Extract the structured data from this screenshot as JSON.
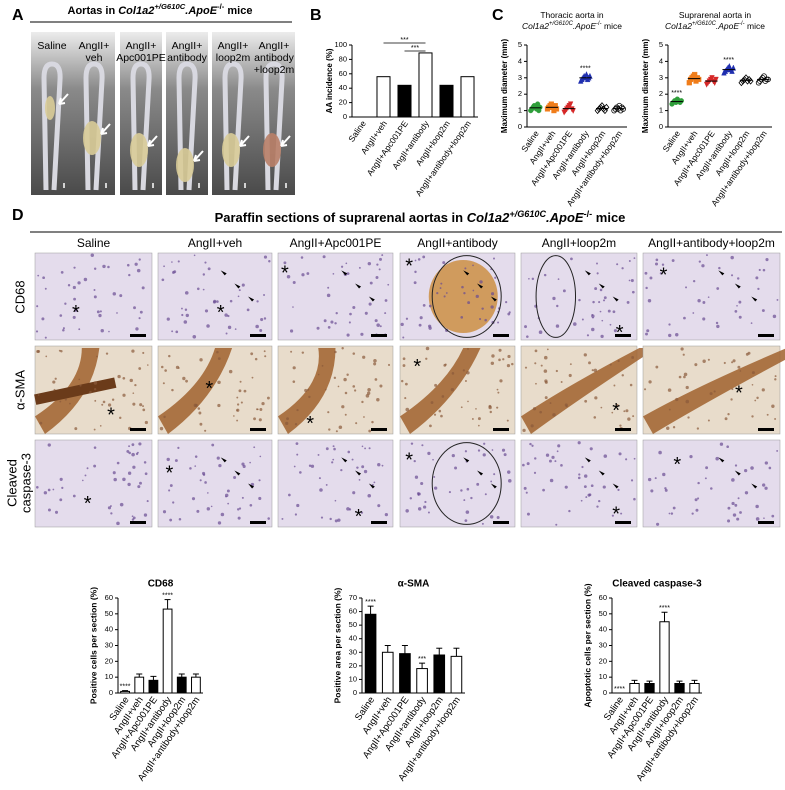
{
  "panel_a": {
    "label": "A",
    "title": [
      {
        "text": "Aortas in "
      },
      {
        "text": "Col1a2",
        "style": "italic"
      },
      {
        "text": "+/G610C",
        "style": "sup-italic"
      },
      {
        "text": ".ApoE",
        "style": "italic"
      },
      {
        "text": "-/-",
        "style": "sup"
      },
      {
        "text": " mice"
      }
    ],
    "groups": [
      [
        "Saline"
      ],
      [
        "AngII+",
        "veh"
      ],
      [
        "AngII+",
        "Apc001PE"
      ],
      [
        "AngII+",
        "antibody"
      ],
      [
        "AngII+",
        "loop2m"
      ],
      [
        "AngII+",
        "antibody",
        "+loop2m"
      ]
    ]
  },
  "panel_d": {
    "label": "D",
    "title": [
      {
        "text": "Paraffin sections of suprarenal aortas in "
      },
      {
        "text": "Col1a2",
        "style": "italic"
      },
      {
        "text": "+/G610C",
        "style": "sup-italic"
      },
      {
        "text": ".ApoE",
        "style": "italic"
      },
      {
        "text": "-/-",
        "style": "sup"
      },
      {
        "text": " mice"
      }
    ],
    "columns": [
      "Saline",
      "AngII+veh",
      "AngII+Apc001PE",
      "AngII+antibody",
      "AngII+loop2m",
      "AngII+antibody+loop2m"
    ],
    "rows": [
      [
        "CD68"
      ],
      [
        "α-SMA"
      ],
      [
        "Cleaved",
        "caspase-3"
      ]
    ],
    "asterisk": "*"
  },
  "chart_data": [
    {
      "panel": "B",
      "type": "bar",
      "ylabel": "AA incidence (%)",
      "categories": [
        "Saline",
        "AngII+veh",
        "AngII+Apc001PE",
        "AngII+antibody",
        "AngII+loop2m",
        "AngII+antibody+loop2m"
      ],
      "values": [
        0,
        56,
        44,
        89,
        44,
        56
      ],
      "colors": [
        "#ffffff",
        "#ffffff",
        "#000000",
        "#ffffff",
        "#000000",
        "#ffffff"
      ],
      "ylim": [
        0,
        100
      ],
      "yticks": [
        0,
        20,
        40,
        60,
        80,
        100
      ],
      "brackets": [
        {
          "from": "AngII+veh",
          "to": "AngII+antibody",
          "label": "***"
        },
        {
          "from": "AngII+Apc001PE",
          "to": "AngII+antibody",
          "label": "***"
        }
      ]
    },
    {
      "panel": "C",
      "type": "strip",
      "title": [
        [
          {
            "text": "Thoracic aorta in"
          }
        ],
        [
          {
            "text": "Col1a2",
            "style": "italic"
          },
          {
            "text": "+/G610C",
            "style": "sup-italic"
          },
          {
            "text": ".ApoE",
            "style": "italic"
          },
          {
            "text": "-/-",
            "style": "sup"
          },
          {
            "text": " mice"
          }
        ]
      ],
      "ylabel": "Maximum diameter (mm)",
      "categories": [
        "Saline",
        "AngII+veh",
        "AngII+Apc001PE",
        "AngII+antibody",
        "AngII+loop2m",
        "AngII+antibody+loop2m"
      ],
      "groups": [
        [
          1.0,
          1.1,
          1.2,
          1.3,
          1.2,
          1.1,
          1.4,
          1.0,
          1.2
        ],
        [
          1.1,
          1.2,
          1.3,
          1.4,
          1.2,
          1.0,
          1.3,
          1.1
        ],
        [
          0.9,
          1.0,
          1.1,
          1.2,
          1.3,
          1.4,
          1.1,
          1.0
        ],
        [
          2.8,
          2.9,
          3.0,
          3.1,
          3.0,
          3.2,
          2.9,
          3.0,
          3.1
        ],
        [
          1.0,
          1.1,
          1.2,
          1.3,
          1.1,
          1.0,
          1.2
        ],
        [
          1.0,
          1.1,
          1.2,
          1.1,
          1.3,
          1.0,
          1.2,
          1.1
        ]
      ],
      "means": [
        1.17,
        1.2,
        1.12,
        3.0,
        1.13,
        1.12
      ],
      "colors": [
        "#2e9e3a",
        "#f07d1a",
        "#d62828",
        "#1f2fb0",
        "#000000",
        "#000000"
      ],
      "markers": [
        "circle",
        "square",
        "triangle-down",
        "triangle",
        "diamond-open",
        "circle-open"
      ],
      "annotations": [
        null,
        null,
        null,
        "****",
        null,
        null
      ],
      "ylim": [
        0,
        5
      ],
      "yticks": [
        0,
        1,
        2,
        3,
        4,
        5
      ]
    },
    {
      "type": "strip",
      "title": [
        [
          {
            "text": "Suprarenal aorta in"
          }
        ],
        [
          {
            "text": "Col1a2",
            "style": "italic"
          },
          {
            "text": "+/G610C",
            "style": "sup-italic"
          },
          {
            "text": ".ApoE",
            "style": "italic"
          },
          {
            "text": "-/-",
            "style": "sup"
          },
          {
            "text": " mice"
          }
        ]
      ],
      "ylabel": "Maximum diameter (mm)",
      "categories": [
        "Saline",
        "AngII+veh",
        "AngII+Apc001PE",
        "AngII+antibody",
        "AngII+loop2m",
        "AngII+antibody+loop2m"
      ],
      "groups": [
        [
          1.4,
          1.5,
          1.6,
          1.5,
          1.7,
          1.6,
          1.5,
          1.6
        ],
        [
          2.7,
          2.9,
          3.0,
          3.1,
          3.2,
          2.8,
          3.0,
          2.9
        ],
        [
          2.6,
          2.7,
          2.8,
          2.9,
          3.0,
          2.8,
          2.7,
          2.9
        ],
        [
          3.3,
          3.4,
          3.5,
          3.6,
          3.7,
          3.5,
          3.4,
          3.6
        ],
        [
          2.7,
          2.8,
          2.9,
          3.0,
          2.8,
          2.9,
          2.8
        ],
        [
          2.7,
          2.8,
          2.9,
          3.0,
          3.1,
          2.8,
          2.9,
          2.9
        ]
      ],
      "means": [
        1.55,
        2.95,
        2.8,
        3.5,
        2.85,
        2.9
      ],
      "colors": [
        "#2e9e3a",
        "#f07d1a",
        "#d62828",
        "#1f2fb0",
        "#000000",
        "#000000"
      ],
      "markers": [
        "circle",
        "square",
        "triangle-down",
        "triangle",
        "diamond-open",
        "circle-open"
      ],
      "annotations": [
        "****",
        null,
        null,
        "****",
        null,
        null
      ],
      "ylim": [
        0,
        5
      ],
      "yticks": [
        0,
        1,
        2,
        3,
        4,
        5
      ]
    },
    {
      "type": "bar",
      "title": "CD68",
      "ylabel": "Positive cells per section (%)",
      "categories": [
        "Saline",
        "AngII+veh",
        "AngII+Apc001PE",
        "AngII+antibody",
        "AngII+loop2m",
        "AngII+antibody+loop2m"
      ],
      "values": [
        1,
        10,
        8,
        53,
        10,
        10
      ],
      "errors": [
        0.5,
        2,
        2.5,
        6,
        2,
        2
      ],
      "colors": [
        "#ffffff",
        "#ffffff",
        "#000000",
        "#ffffff",
        "#000000",
        "#ffffff"
      ],
      "annotations": [
        "****",
        null,
        null,
        "****",
        null,
        null
      ],
      "ylim": [
        0,
        60
      ],
      "yticks": [
        0,
        10,
        20,
        30,
        40,
        50,
        60
      ]
    },
    {
      "type": "bar",
      "title": "α-SMA",
      "ylabel": "Positive area per section (%)",
      "categories": [
        "Saline",
        "AngII+veh",
        "AngII+Apc001PE",
        "AngII+antibody",
        "AngII+loop2m",
        "AngII+antibody+loop2m"
      ],
      "values": [
        58,
        30,
        29,
        18,
        28,
        27
      ],
      "errors": [
        6,
        5,
        6,
        4,
        5,
        6
      ],
      "colors": [
        "#000000",
        "#ffffff",
        "#000000",
        "#ffffff",
        "#000000",
        "#ffffff"
      ],
      "annotations": [
        "****",
        null,
        null,
        "***",
        null,
        null
      ],
      "ylim": [
        0,
        70
      ],
      "yticks": [
        0,
        10,
        20,
        30,
        40,
        50,
        60,
        70
      ]
    },
    {
      "type": "bar",
      "title": "Cleaved caspase-3",
      "ylabel": "Apoptotic cells per section (%)",
      "categories": [
        "Saline",
        "AngII+veh",
        "AngII+Apc001PE",
        "AngII+antibody",
        "AngII+loop2m",
        "AngII+antibody+loop2m"
      ],
      "values": [
        0,
        6,
        6,
        45,
        6,
        6
      ],
      "errors": [
        0,
        2,
        1.5,
        6,
        1.5,
        2
      ],
      "colors": [
        "#ffffff",
        "#ffffff",
        "#000000",
        "#ffffff",
        "#000000",
        "#ffffff"
      ],
      "annotations": [
        "****",
        null,
        null,
        "****",
        null,
        null
      ],
      "ylim": [
        0,
        60
      ],
      "yticks": [
        0,
        10,
        20,
        30,
        40,
        50,
        60
      ]
    }
  ]
}
